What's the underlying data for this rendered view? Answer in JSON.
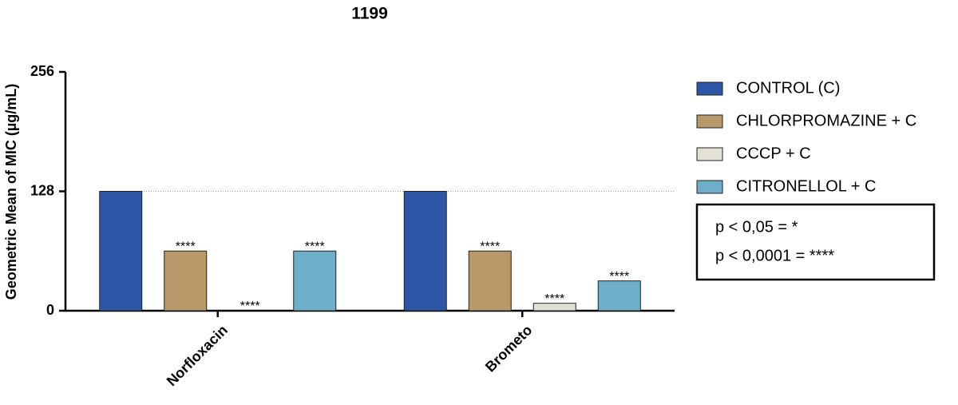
{
  "chart_data": {
    "type": "bar",
    "title": "1199",
    "y_label": "Geometric Mean of MIC (µg/mL)",
    "categories": [
      "Norfloxacin",
      "Brometo"
    ],
    "ylim": [
      0,
      256
    ],
    "yticks": [
      0,
      128,
      256
    ],
    "reference_lines": [
      128
    ],
    "series": [
      {
        "name": "CONTROL (C)",
        "color": "#2c56a5",
        "values": [
          128,
          128
        ]
      },
      {
        "name": "CHLORPROMAZINE + C",
        "color": "#b8996a",
        "values": [
          64,
          64
        ],
        "significance": [
          "****",
          "****"
        ]
      },
      {
        "name": "CCCP + C",
        "color": "#e3e0d6",
        "values": [
          0,
          8
        ],
        "significance": [
          "****",
          "****"
        ]
      },
      {
        "name": "CITRONELLOL + C",
        "color": "#6faec9",
        "values": [
          64,
          32
        ],
        "significance": [
          "****",
          "****"
        ]
      }
    ],
    "legend_position": "right",
    "legend_note": [
      "p < 0,05 = *",
      "p < 0,0001 = ****"
    ]
  }
}
